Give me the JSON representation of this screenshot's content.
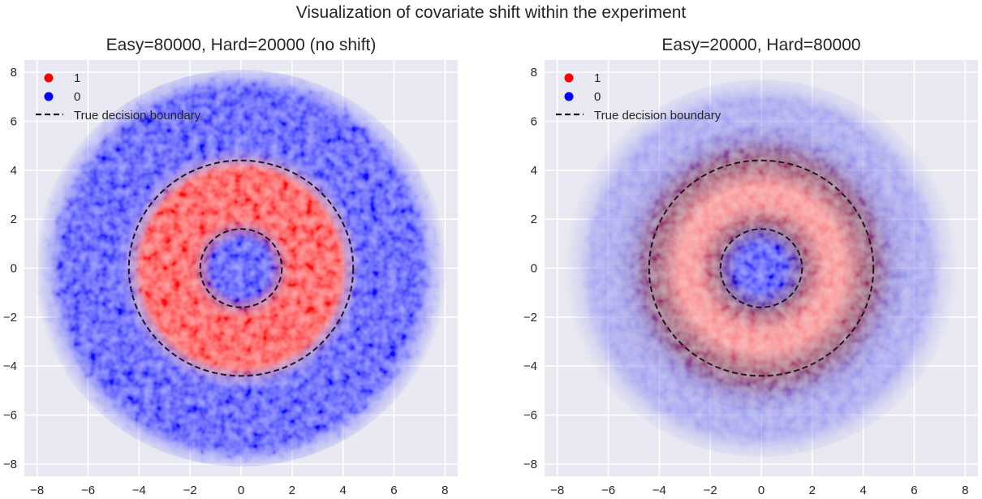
{
  "figure": {
    "suptitle": "Visualization of covariate shift within the experiment"
  },
  "chart_data": [
    {
      "type": "scatter",
      "title": "Easy=80000, Hard=20000 (no shift)",
      "xlabel": "",
      "ylabel": "",
      "xlim": [
        -8.5,
        8.5
      ],
      "ylim": [
        -8.5,
        8.5
      ],
      "xticks": [
        -8,
        -6,
        -4,
        -2,
        0,
        2,
        4,
        6,
        8
      ],
      "yticks": [
        -8,
        -6,
        -4,
        -2,
        0,
        2,
        4,
        6,
        8
      ],
      "xtick_labels": [
        "−8",
        "−6",
        "−4",
        "−2",
        "0",
        "2",
        "4",
        "6",
        "8"
      ],
      "ytick_labels": [
        "−8",
        "−6",
        "−4",
        "−2",
        "0",
        "2",
        "4",
        "6",
        "8"
      ],
      "grid": true,
      "legend": {
        "position": "top-left",
        "entries": [
          {
            "label": "1",
            "marker": "dot",
            "color": "#ff0000"
          },
          {
            "label": "0",
            "marker": "dot",
            "color": "#0000ff"
          },
          {
            "label": "True decision boundary",
            "marker": "dashed-line",
            "color": "#1a1a1a"
          }
        ]
      },
      "decision_boundaries": [
        {
          "shape": "circle",
          "center": [
            0,
            0
          ],
          "radius": 1.6
        },
        {
          "shape": "circle",
          "center": [
            0,
            0
          ],
          "radius": 4.4
        }
      ],
      "point_density": [
        {
          "class": "0",
          "color": "#0000ff",
          "r_range": [
            0,
            1.6
          ],
          "intensity": 0.95
        },
        {
          "class": "1",
          "color": "#ff0000",
          "r_range": [
            1.8,
            4.0
          ],
          "intensity": 0.95
        },
        {
          "class": "0",
          "color": "#0000ff",
          "r_range": [
            4.6,
            7.2
          ],
          "intensity": 0.95
        }
      ],
      "n_easy": 80000,
      "n_hard": 20000
    },
    {
      "type": "scatter",
      "title": "Easy=20000, Hard=80000",
      "xlabel": "",
      "ylabel": "",
      "xlim": [
        -8.5,
        8.5
      ],
      "ylim": [
        -8.5,
        8.5
      ],
      "xticks": [
        -8,
        -6,
        -4,
        -2,
        0,
        2,
        4,
        6,
        8
      ],
      "yticks": [
        -8,
        -6,
        -4,
        -2,
        0,
        2,
        4,
        6,
        8
      ],
      "xtick_labels": [
        "−8",
        "−6",
        "−4",
        "−2",
        "0",
        "2",
        "4",
        "6",
        "8"
      ],
      "ytick_labels": [
        "−8",
        "−6",
        "−4",
        "−2",
        "0",
        "2",
        "4",
        "6",
        "8"
      ],
      "grid": true,
      "legend": {
        "position": "top-left",
        "entries": [
          {
            "label": "1",
            "marker": "dot",
            "color": "#ff0000"
          },
          {
            "label": "0",
            "marker": "dot",
            "color": "#0000ff"
          },
          {
            "label": "True decision boundary",
            "marker": "dashed-line",
            "color": "#1a1a1a"
          }
        ]
      },
      "decision_boundaries": [
        {
          "shape": "circle",
          "center": [
            0,
            0
          ],
          "radius": 1.6
        },
        {
          "shape": "circle",
          "center": [
            0,
            0
          ],
          "radius": 4.4
        }
      ],
      "point_density": [
        {
          "class": "0",
          "color": "#0000ff",
          "r_range": [
            0,
            1.6
          ],
          "intensity": 0.95
        },
        {
          "class": "overlap",
          "color": "#8a0a5a",
          "r_range": [
            1.6,
            2.3
          ],
          "intensity": 0.9
        },
        {
          "class": "1",
          "color": "#ff8080",
          "r_range": [
            2.3,
            3.9
          ],
          "intensity": 0.8
        },
        {
          "class": "overlap",
          "color": "#8a0a5a",
          "r_range": [
            3.9,
            4.9
          ],
          "intensity": 0.85
        },
        {
          "class": "0",
          "color": "#6060f0",
          "r_range": [
            4.9,
            6.8
          ],
          "intensity": 0.5
        }
      ],
      "n_easy": 20000,
      "n_hard": 80000
    }
  ]
}
